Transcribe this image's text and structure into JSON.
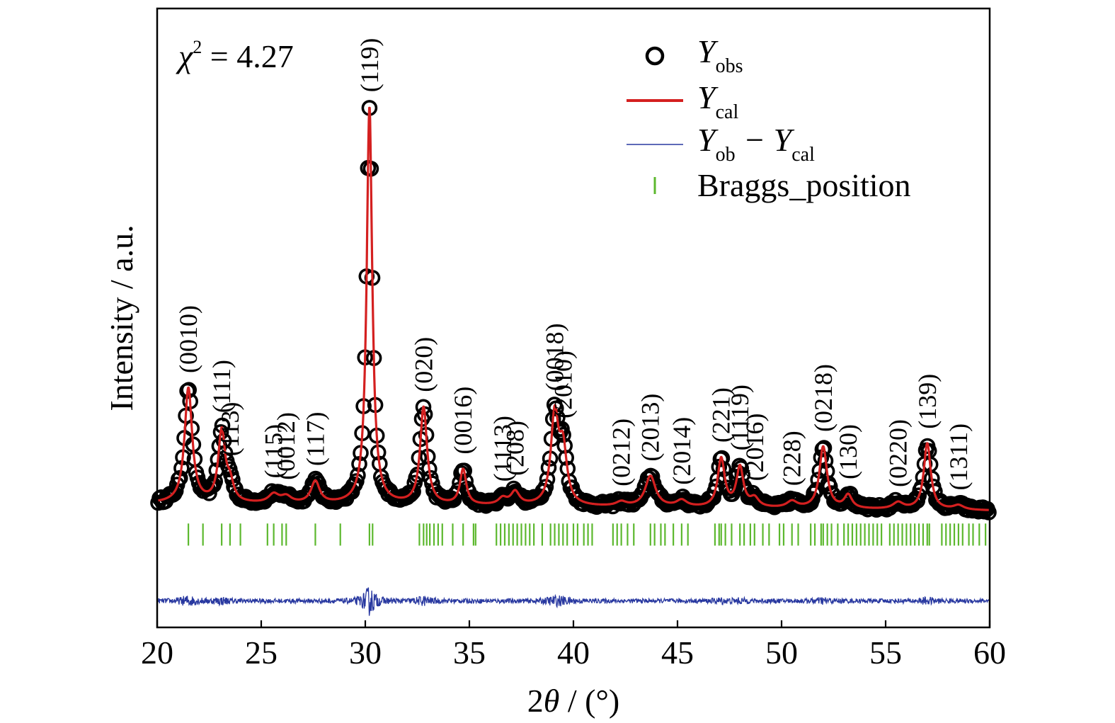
{
  "chart_data": {
    "type": "scatter",
    "title": "",
    "xlabel": "2θ / (°)",
    "ylabel": "Intensity / a.u.",
    "xlim": [
      20,
      60
    ],
    "ylim": [
      -25,
      115
    ],
    "xticks": [
      20,
      25,
      30,
      35,
      40,
      45,
      50,
      55,
      60
    ],
    "xtick_labels": [
      "20",
      "25",
      "30",
      "35",
      "40",
      "45",
      "50",
      "55",
      "60"
    ],
    "annotation": {
      "chi_symbol": "χ",
      "chi_exp": "2",
      "chi_value": " = 4.27"
    },
    "legend": {
      "placement": "top-right",
      "entries": [
        {
          "main": "Y",
          "sub": "obs",
          "marker": "circle",
          "color": "#000000"
        },
        {
          "main": "Y",
          "sub": "cal",
          "marker": "line",
          "color": "#d42020"
        },
        {
          "main": "Y",
          "sub": "ob",
          "main2": " − Y",
          "sub2": "cal",
          "marker": "thin-line",
          "color": "#2838a0"
        },
        {
          "main": "Braggs_position",
          "marker": "tick",
          "color": "#5cb82e"
        }
      ]
    },
    "baseline": 3.0,
    "background_slope": -0.04,
    "diff_offset": -19,
    "bragg_row": [
      -6.5,
      -1.5
    ],
    "peaks": [
      {
        "label": "(0010)",
        "x": 21.5,
        "height": 26,
        "width": 0.22
      },
      {
        "label": "(111)",
        "x": 23.1,
        "height": 16,
        "width": 0.2
      },
      {
        "label": "(113)",
        "x": 23.5,
        "height": 4,
        "width": 0.2
      },
      {
        "label": "(115)",
        "x": 25.6,
        "height": 2,
        "width": 0.3
      },
      {
        "label": "(0012)",
        "x": 26.2,
        "height": 1.5,
        "width": 0.3
      },
      {
        "label": "(117)",
        "x": 27.6,
        "height": 5,
        "width": 0.25
      },
      {
        "label": "(119)",
        "x": 30.2,
        "height": 90,
        "width": 0.16
      },
      {
        "label": "(020)",
        "x": 32.8,
        "height": 22,
        "width": 0.2
      },
      {
        "label": "(0016)",
        "x": 34.7,
        "height": 8,
        "width": 0.18
      },
      {
        "label": "(1113)",
        "x": 36.6,
        "height": 1.5,
        "width": 0.25
      },
      {
        "label": "(208)",
        "x": 37.2,
        "height": 3,
        "width": 0.25
      },
      {
        "label": "(0018)",
        "x": 39.1,
        "height": 20,
        "width": 0.22
      },
      {
        "label": "(2010)",
        "x": 39.5,
        "height": 12,
        "width": 0.22
      },
      {
        "label": "(0212)",
        "x": 42.3,
        "height": 1,
        "width": 0.3
      },
      {
        "label": "(2013)",
        "x": 43.7,
        "height": 7,
        "width": 0.3
      },
      {
        "label": "(2014)",
        "x": 45.2,
        "height": 1.5,
        "width": 0.3
      },
      {
        "label": "(221)",
        "x": 47.1,
        "height": 11,
        "width": 0.2
      },
      {
        "label": "(1119)",
        "x": 48.0,
        "height": 9,
        "width": 0.2
      },
      {
        "label": "(2016)",
        "x": 48.7,
        "height": 2,
        "width": 0.25
      },
      {
        "label": "(228)",
        "x": 50.5,
        "height": 1.5,
        "width": 0.3
      },
      {
        "label": "(0218)",
        "x": 52.0,
        "height": 14,
        "width": 0.22
      },
      {
        "label": "(130)",
        "x": 53.2,
        "height": 3,
        "width": 0.22
      },
      {
        "label": "(0220)",
        "x": 55.6,
        "height": 1.5,
        "width": 0.3
      },
      {
        "label": "(139)",
        "x": 57.0,
        "height": 15,
        "width": 0.2
      },
      {
        "label": "(1311)",
        "x": 58.5,
        "height": 1,
        "width": 0.3
      }
    ],
    "bragg_positions": [
      21.5,
      22.2,
      23.1,
      23.5,
      24.0,
      25.3,
      25.6,
      26.0,
      26.2,
      27.6,
      28.8,
      30.2,
      30.35,
      32.6,
      32.8,
      32.95,
      33.1,
      33.3,
      33.5,
      33.7,
      34.2,
      34.7,
      35.2,
      35.3,
      36.3,
      36.5,
      36.7,
      36.9,
      37.1,
      37.3,
      37.5,
      37.7,
      37.9,
      38.1,
      38.5,
      38.9,
      39.1,
      39.3,
      39.5,
      39.7,
      40.0,
      40.2,
      40.5,
      40.7,
      40.9,
      41.9,
      42.1,
      42.3,
      42.6,
      42.9,
      43.7,
      43.9,
      44.2,
      44.4,
      44.8,
      45.2,
      45.5,
      46.8,
      47.0,
      47.1,
      47.3,
      47.6,
      48.0,
      48.2,
      48.5,
      48.7,
      49.1,
      49.4,
      49.9,
      50.1,
      50.5,
      50.8,
      51.4,
      51.6,
      51.9,
      52.0,
      52.2,
      52.4,
      52.7,
      53.0,
      53.2,
      53.4,
      53.6,
      53.8,
      54.0,
      54.2,
      54.4,
      54.6,
      54.8,
      55.2,
      55.4,
      55.6,
      55.8,
      56.0,
      56.2,
      56.4,
      56.6,
      56.8,
      57.0,
      57.1,
      57.7,
      57.9,
      58.1,
      58.3,
      58.5,
      58.7,
      59.0,
      59.2,
      59.5,
      59.8
    ]
  }
}
